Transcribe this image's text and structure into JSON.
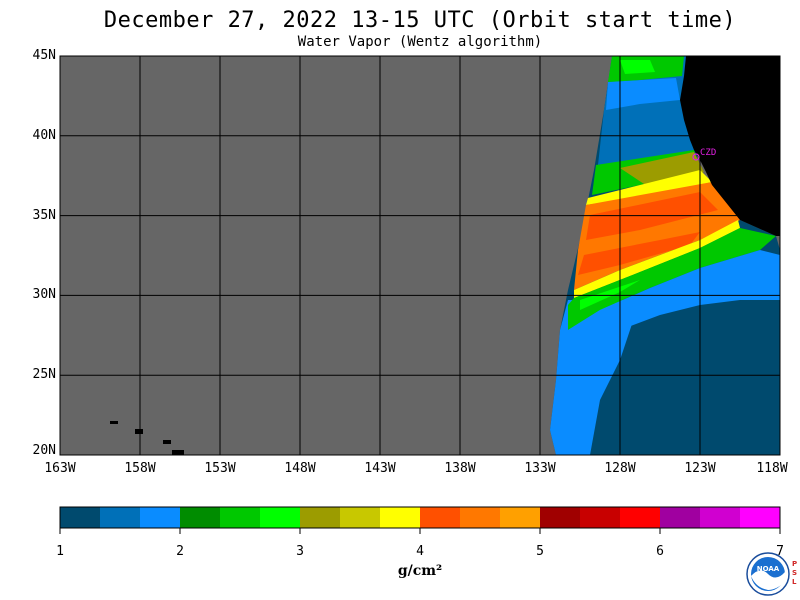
{
  "title": "December 27, 2022  13-15 UTC  (Orbit start time)",
  "subtitle": "Water Vapor (Wentz algorithm)",
  "map": {
    "lat_range": [
      20,
      45
    ],
    "lon_range": [
      -163,
      -118
    ],
    "lat_ticks": [
      {
        "value": 45,
        "label": "45N"
      },
      {
        "value": 40,
        "label": "40N"
      },
      {
        "value": 35,
        "label": "35N"
      },
      {
        "value": 30,
        "label": "30N"
      },
      {
        "value": 25,
        "label": "25N"
      },
      {
        "value": 20,
        "label": "20N"
      }
    ],
    "lon_ticks": [
      {
        "value": -163,
        "label": "163W"
      },
      {
        "value": -158,
        "label": "158W"
      },
      {
        "value": -153,
        "label": "153W"
      },
      {
        "value": -148,
        "label": "148W"
      },
      {
        "value": -143,
        "label": "143W"
      },
      {
        "value": -138,
        "label": "138W"
      },
      {
        "value": -133,
        "label": "133W"
      },
      {
        "value": -128,
        "label": "128W"
      },
      {
        "value": -123,
        "label": "123W"
      },
      {
        "value": -118,
        "label": "118W"
      }
    ],
    "station_label": "CZD",
    "station_color": "#e020e0",
    "no_data_color": "#666666",
    "land_color": "#000000"
  },
  "colorbar": {
    "colors": [
      "#004a6e",
      "#0070b8",
      "#0a8cff",
      "#008c00",
      "#00c800",
      "#00ff00",
      "#9c9c00",
      "#c8c800",
      "#ffff00",
      "#ff5000",
      "#ff7800",
      "#ffa000",
      "#a00000",
      "#c80000",
      "#ff0000",
      "#a000a0",
      "#d000d0",
      "#ff00ff"
    ],
    "ticks": [
      "1",
      "2",
      "3",
      "4",
      "5",
      "6",
      "7"
    ],
    "units": "g/cm²"
  },
  "logo": {
    "text": "NOAA",
    "side_text": [
      "P",
      "S",
      "L"
    ]
  }
}
